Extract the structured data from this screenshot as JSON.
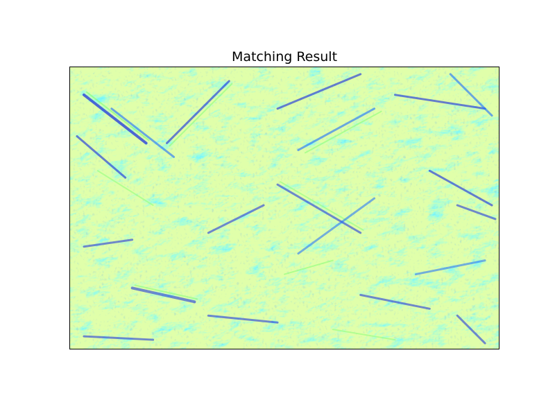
{
  "figure": {
    "title": "Matching Result"
  },
  "image": {
    "description_colormap": "jet",
    "colors": {
      "base": "#22d8ff",
      "light": "#36f2ea",
      "cyan_mid": "#1fb4ff",
      "blue_dark": "#1226e0",
      "blue_mid": "#1a6cff",
      "green_light": "#8cff7a",
      "yellow_hint": "#c8ff66"
    }
  }
}
